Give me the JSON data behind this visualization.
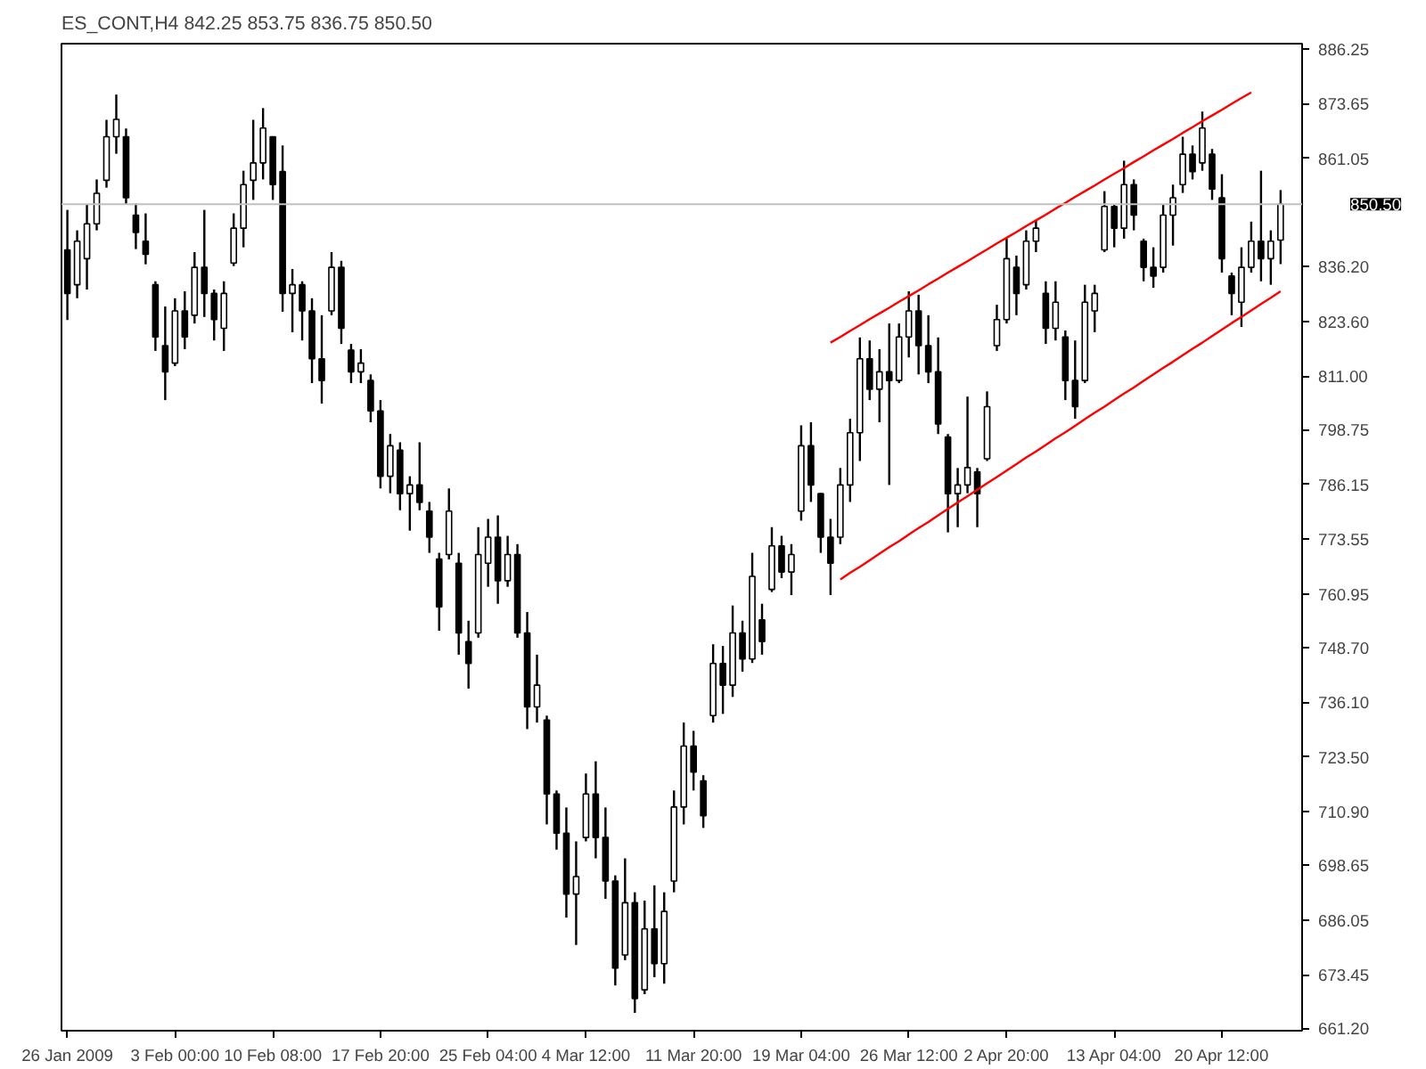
{
  "chart_data": {
    "type": "candlestick",
    "title": "ES_CONT,H4  842.25 853.75 836.75 850.50",
    "color": "#000000",
    "categories": [
      "26 Jan 2009",
      null,
      null,
      null,
      null,
      null,
      null,
      null,
      null,
      null,
      null,
      "3 Feb 00:00",
      null,
      null,
      null,
      null,
      null,
      null,
      null,
      null,
      null,
      "10 Feb 08:00",
      null,
      null,
      null,
      null,
      null,
      null,
      null,
      null,
      null,
      null,
      "17 Feb 20:00",
      null,
      null,
      null,
      null,
      null,
      null,
      null,
      null,
      null,
      null,
      "25 Feb 04:00",
      null,
      null,
      null,
      null,
      null,
      null,
      null,
      null,
      null,
      "4 Mar 12:00",
      null,
      null,
      null,
      null,
      null,
      null,
      null,
      null,
      null,
      null,
      "11 Mar 20:00",
      null,
      null,
      null,
      null,
      null,
      null,
      null,
      null,
      null,
      null,
      "19 Mar 04:00",
      null,
      null,
      null,
      null,
      null,
      null,
      null,
      null,
      null,
      null,
      "26 Mar 12:00",
      null,
      null,
      null,
      null,
      null,
      null,
      null,
      null,
      null,
      "2 Apr 20:00",
      null,
      null,
      null,
      null,
      null,
      null,
      null,
      null,
      null,
      null,
      "13 Apr 04:00",
      null,
      null,
      null,
      null,
      null,
      null,
      null,
      null,
      null,
      null,
      "20 Apr 12:00",
      null,
      null,
      null,
      null,
      null,
      null
    ],
    "ohlc": [
      [
        840,
        849.2,
        823.9,
        830
      ],
      [
        832,
        844.5,
        828.9,
        842
      ],
      [
        838,
        850.4,
        830.9,
        846
      ],
      [
        846,
        856.2,
        844.5,
        853
      ],
      [
        856,
        869.9,
        854.3,
        866
      ],
      [
        866,
        875.7,
        862.1,
        870
      ],
      [
        866,
        867.9,
        850.4,
        852
      ],
      [
        848,
        850.7,
        840.2,
        844
      ],
      [
        842,
        848.4,
        836.7,
        839
      ],
      [
        832,
        832.8,
        816.8,
        820
      ],
      [
        818,
        827.0,
        805.5,
        812
      ],
      [
        814,
        828.9,
        813.3,
        826
      ],
      [
        826,
        830.5,
        817.2,
        820
      ],
      [
        825,
        839.5,
        823.1,
        836
      ],
      [
        836,
        849.2,
        824.6,
        830
      ],
      [
        830,
        830.9,
        819.2,
        824
      ],
      [
        822,
        832.8,
        816.8,
        830
      ],
      [
        837,
        848.4,
        836.3,
        845
      ],
      [
        845,
        858.2,
        840.6,
        855
      ],
      [
        856,
        869.9,
        851.5,
        860
      ],
      [
        860,
        872.6,
        856.2,
        868
      ],
      [
        866,
        866.0,
        851.5,
        855
      ],
      [
        858,
        864.0,
        825.8,
        830
      ],
      [
        830,
        835.6,
        821.1,
        832
      ],
      [
        832,
        832.8,
        819.2,
        826
      ],
      [
        826,
        828.9,
        809.4,
        815
      ],
      [
        815,
        825.0,
        804.7,
        810
      ],
      [
        826,
        839.5,
        825.0,
        836
      ],
      [
        836,
        837.5,
        818.4,
        822
      ],
      [
        817,
        818.4,
        809.4,
        812
      ],
      [
        812,
        817.2,
        809.4,
        814
      ],
      [
        810,
        811.4,
        800.4,
        803
      ],
      [
        803,
        805.5,
        785.2,
        788
      ],
      [
        788,
        797.7,
        784.1,
        795
      ],
      [
        794,
        795.8,
        780.2,
        784
      ],
      [
        784,
        788.0,
        775.5,
        786
      ],
      [
        786,
        795.8,
        780.2,
        782
      ],
      [
        780,
        782.1,
        770.4,
        774
      ],
      [
        769,
        770.4,
        752.5,
        758
      ],
      [
        770,
        785.2,
        768.9,
        780
      ],
      [
        768,
        770.4,
        747.0,
        752
      ],
      [
        750,
        754.8,
        739.2,
        745
      ],
      [
        752,
        776.3,
        750.9,
        770
      ],
      [
        768,
        778.2,
        762.6,
        774
      ],
      [
        774,
        779.0,
        758.7,
        764
      ],
      [
        764,
        774.3,
        762.6,
        770
      ],
      [
        770,
        772.4,
        750.9,
        752
      ],
      [
        752,
        756.8,
        729.9,
        735
      ],
      [
        735,
        747.0,
        731.4,
        740
      ],
      [
        732,
        733.0,
        708.0,
        715
      ],
      [
        715,
        715.8,
        702.2,
        706
      ],
      [
        706,
        711.9,
        686.6,
        692
      ],
      [
        692,
        704.1,
        680.3,
        696
      ],
      [
        705,
        719.7,
        704.1,
        715
      ],
      [
        715,
        722.5,
        700.2,
        705
      ],
      [
        705,
        711.9,
        690.9,
        695
      ],
      [
        695,
        696.3,
        671.0,
        675
      ],
      [
        678,
        700.2,
        676.8,
        690
      ],
      [
        690,
        692.4,
        664.7,
        668
      ],
      [
        670,
        690.5,
        669.0,
        684
      ],
      [
        684,
        694.0,
        672.9,
        676
      ],
      [
        676,
        692.4,
        671.4,
        688
      ],
      [
        695,
        715.8,
        692.4,
        712
      ],
      [
        712,
        731.4,
        708.0,
        726
      ],
      [
        726,
        729.5,
        715.8,
        720
      ],
      [
        718,
        719.3,
        707.2,
        710
      ],
      [
        733,
        749.4,
        731.4,
        745
      ],
      [
        745,
        749.0,
        733.4,
        740
      ],
      [
        740,
        758.3,
        737.3,
        752
      ],
      [
        752,
        754.8,
        743.1,
        746
      ],
      [
        746,
        770.4,
        745.1,
        765
      ],
      [
        755,
        758.7,
        747.0,
        750
      ],
      [
        762,
        776.3,
        761.4,
        772
      ],
      [
        772,
        774.3,
        764.6,
        766
      ],
      [
        766,
        772.4,
        760.7,
        770
      ],
      [
        780,
        799.7,
        777.8,
        795
      ],
      [
        795,
        800.4,
        782.1,
        786
      ],
      [
        784,
        784.1,
        770.4,
        774
      ],
      [
        774,
        778.2,
        760.7,
        768
      ],
      [
        774,
        789.9,
        772.4,
        786
      ],
      [
        786,
        801.2,
        782.1,
        798
      ],
      [
        798,
        819.9,
        791.5,
        815
      ],
      [
        815,
        819.2,
        805.5,
        808
      ],
      [
        808,
        817.2,
        800.4,
        812
      ],
      [
        812,
        823.1,
        786.0,
        810
      ],
      [
        810,
        823.1,
        809.4,
        820
      ],
      [
        820,
        830.5,
        815.3,
        826
      ],
      [
        826,
        829.7,
        811.4,
        818
      ],
      [
        818,
        825.0,
        809.4,
        812
      ],
      [
        812,
        819.9,
        797.7,
        800
      ],
      [
        797,
        797.7,
        775.1,
        784
      ],
      [
        784,
        789.9,
        776.3,
        786
      ],
      [
        786,
        806.3,
        784.1,
        790
      ],
      [
        789,
        789.9,
        776.3,
        784
      ],
      [
        792,
        807.5,
        791.5,
        804
      ],
      [
        818,
        827.4,
        816.8,
        824
      ],
      [
        824,
        842.6,
        823.1,
        838
      ],
      [
        836,
        838.7,
        825.0,
        830
      ],
      [
        832,
        844.5,
        830.9,
        842
      ],
      [
        842,
        846.9,
        839.5,
        845
      ],
      [
        830,
        832.8,
        818.4,
        822
      ],
      [
        822,
        832.8,
        819.2,
        828
      ],
      [
        820,
        821.5,
        805.5,
        810
      ],
      [
        810,
        819.2,
        801.2,
        804
      ],
      [
        810,
        832.0,
        809.4,
        828
      ],
      [
        826,
        832.0,
        821.1,
        830
      ],
      [
        840,
        853.5,
        839.5,
        850
      ],
      [
        850,
        850.4,
        840.6,
        845
      ],
      [
        845,
        860.5,
        842.6,
        855
      ],
      [
        855,
        856.2,
        844.5,
        848
      ],
      [
        842,
        842.6,
        832.8,
        836
      ],
      [
        836,
        840.6,
        831.3,
        834
      ],
      [
        836,
        850.4,
        834.8,
        848
      ],
      [
        848,
        855.0,
        841.0,
        852
      ],
      [
        855,
        866.0,
        853.1,
        862
      ],
      [
        862,
        864.0,
        856.2,
        858
      ],
      [
        860,
        871.8,
        858.2,
        868
      ],
      [
        862,
        863.2,
        851.5,
        854
      ],
      [
        852,
        857.4,
        834.8,
        838
      ],
      [
        834,
        834.8,
        825.0,
        830
      ],
      [
        828,
        840.6,
        822.3,
        836
      ],
      [
        836,
        846.5,
        834.8,
        842
      ],
      [
        842,
        858.2,
        832.8,
        838
      ],
      [
        838,
        844.5,
        832.0,
        842
      ],
      [
        842.25,
        853.75,
        836.75,
        850.5
      ]
    ],
    "series": [
      {
        "type": "line",
        "color": "#ff0000",
        "values": [
          null,
          null,
          null,
          null,
          null,
          null,
          null,
          null,
          null,
          null,
          null,
          null,
          null,
          null,
          null,
          null,
          null,
          null,
          null,
          null,
          null,
          null,
          null,
          null,
          null,
          null,
          null,
          null,
          null,
          null,
          null,
          null,
          null,
          null,
          null,
          null,
          null,
          null,
          null,
          null,
          null,
          null,
          null,
          null,
          null,
          null,
          null,
          null,
          null,
          null,
          null,
          null,
          null,
          null,
          null,
          null,
          null,
          null,
          null,
          null,
          null,
          null,
          null,
          null,
          null,
          null,
          null,
          null,
          null,
          null,
          null,
          null,
          null,
          null,
          null,
          null,
          null,
          null,
          818.7,
          820.0,
          821.4,
          822.7,
          824.1,
          825.4,
          826.7,
          828.1,
          829.4,
          830.7,
          832.1,
          833.4,
          834.8,
          836.1,
          837.4,
          838.8,
          840.1,
          841.5,
          842.8,
          844.1,
          845.5,
          846.8,
          848.1,
          849.5,
          850.8,
          852.2,
          853.5,
          854.8,
          856.2,
          857.5,
          858.8,
          860.2,
          861.5,
          862.9,
          864.2,
          865.5,
          866.9,
          868.2,
          869.6,
          870.9,
          872.2,
          873.6,
          874.9,
          876.2,
          null,
          null,
          null
        ]
      },
      {
        "type": "line",
        "color": "#ff0000",
        "values": [
          null,
          null,
          null,
          null,
          null,
          null,
          null,
          null,
          null,
          null,
          null,
          null,
          null,
          null,
          null,
          null,
          null,
          null,
          null,
          null,
          null,
          null,
          null,
          null,
          null,
          null,
          null,
          null,
          null,
          null,
          null,
          null,
          null,
          null,
          null,
          null,
          null,
          null,
          null,
          null,
          null,
          null,
          null,
          null,
          null,
          null,
          null,
          null,
          null,
          null,
          null,
          null,
          null,
          null,
          null,
          null,
          null,
          null,
          null,
          null,
          null,
          null,
          null,
          null,
          null,
          null,
          null,
          null,
          null,
          null,
          null,
          null,
          null,
          null,
          null,
          null,
          null,
          null,
          null,
          764.3,
          765.8,
          767.2,
          768.7,
          770.2,
          771.7,
          773.1,
          774.6,
          776.1,
          777.5,
          779.0,
          780.5,
          782.0,
          783.4,
          784.9,
          786.4,
          787.8,
          789.3,
          790.8,
          792.3,
          793.7,
          795.2,
          796.7,
          798.1,
          799.6,
          801.1,
          802.6,
          804.0,
          805.5,
          807.0,
          808.4,
          809.9,
          811.4,
          812.9,
          814.3,
          815.8,
          817.3,
          818.7,
          820.2,
          821.7,
          823.2,
          824.6,
          826.1,
          827.6,
          829.0,
          830.5
        ]
      }
    ],
    "ylim": [
      660.6,
      887.4
    ],
    "yticks": [
      886.25,
      873.65,
      861.05,
      {
        "value": 836.2,
        "label": "836.20"
      },
      {
        "value": 823.6,
        "label": "823.60"
      },
      {
        "value": 811.0,
        "label": "811.00"
      },
      798.75,
      786.15,
      773.55,
      760.95,
      {
        "value": 748.7,
        "label": "748.70"
      },
      {
        "value": 736.1,
        "label": "736.10"
      },
      {
        "value": 723.5,
        "label": "723.50"
      },
      {
        "value": 710.9,
        "label": "710.90"
      },
      698.65,
      686.05,
      673.45,
      {
        "value": 661.2,
        "label": "661.20"
      }
    ],
    "ref_lines": [
      {
        "axis": "y",
        "value": 850.5,
        "label": "850.50",
        "color": "#c0c0c0"
      }
    ]
  }
}
